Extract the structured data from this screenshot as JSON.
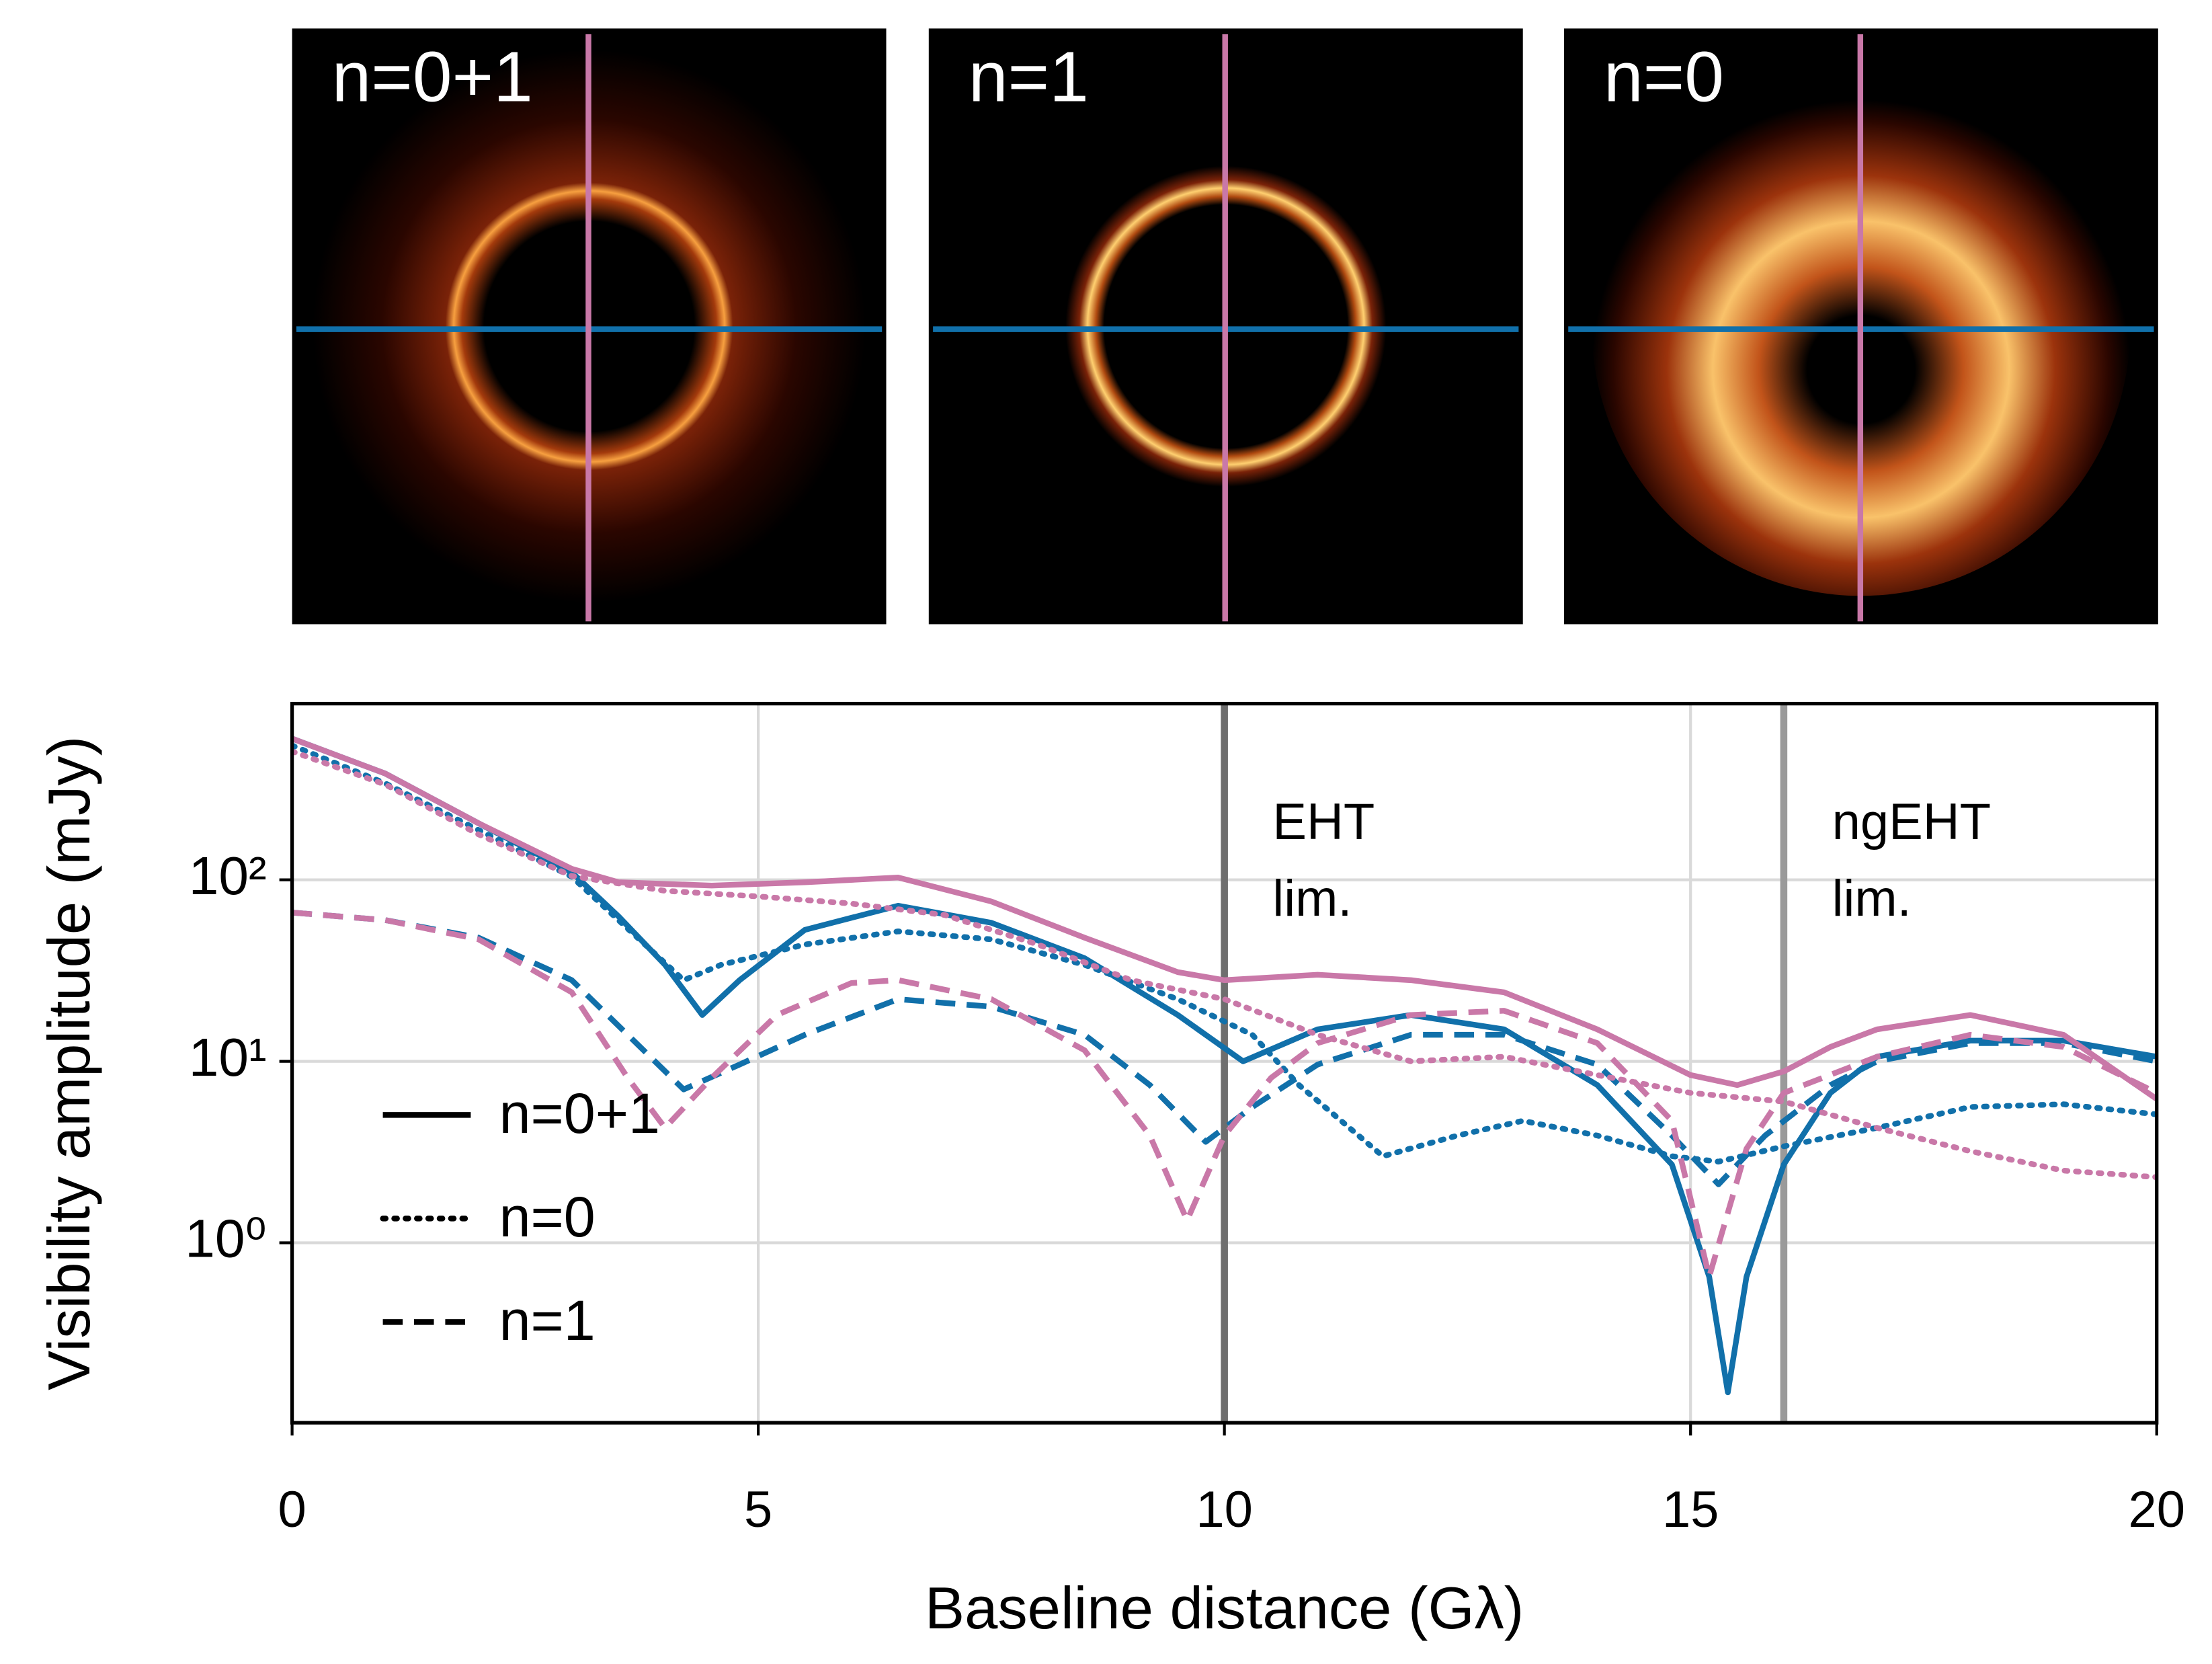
{
  "chart_data": {
    "type": "line",
    "panels": [
      {
        "label": "n=0+1"
      },
      {
        "label": "n=1"
      },
      {
        "label": "n=0"
      }
    ],
    "x_label": "Baseline distance (Gλ)",
    "y_label": "Visibility amplitude (mJy)",
    "xlim": [
      0,
      20
    ],
    "xticks": [
      0,
      5,
      10,
      15,
      20
    ],
    "ylim": [
      0.102,
      935
    ],
    "yscale": "log",
    "yticks": [
      {
        "value": 1,
        "label": "10⁰"
      },
      {
        "value": 10,
        "label": "10¹"
      },
      {
        "value": 100,
        "label": "10²"
      }
    ],
    "grid": true,
    "legend": [
      {
        "label": "n=0+1",
        "line_style": "solid"
      },
      {
        "label": "n=0",
        "line_style": "dotted"
      },
      {
        "label": "n=1",
        "line_style": "dashed"
      }
    ],
    "vlines": [
      {
        "x": 10,
        "color": "#6e6e6e",
        "text": [
          "EHT",
          "lim."
        ]
      },
      {
        "x": 16,
        "color": "#9a9a9a",
        "text": [
          "ngEHT",
          "lim."
        ]
      }
    ],
    "series": [
      {
        "color": "#1170aa",
        "line_style": "solid",
        "x": [
          0,
          1,
          2,
          3,
          3.5,
          4,
          4.4,
          4.8,
          5.5,
          6.5,
          7.5,
          8.5,
          9.5,
          10.2,
          11,
          12,
          13,
          14,
          14.8,
          15.2,
          15.4,
          15.6,
          16,
          16.5,
          17,
          18,
          19,
          20
        ],
        "values": [
          600,
          385,
          205,
          110,
          63,
          34,
          18,
          28,
          53,
          72,
          58,
          37,
          18,
          10,
          15,
          18,
          15,
          7.4,
          2.7,
          0.65,
          0.15,
          0.65,
          2.7,
          6.7,
          10.6,
          13,
          13,
          10.6
        ]
      },
      {
        "color": "#1170aa",
        "line_style": "dotted",
        "x": [
          0,
          1,
          2,
          3,
          3.5,
          4.2,
          4.6,
          5.5,
          6.5,
          7.5,
          8.5,
          9.5,
          10.3,
          10.8,
          11.7,
          12.5,
          13.2,
          14,
          14.8,
          15.3,
          16,
          17,
          18,
          19,
          20
        ],
        "values": [
          550,
          340,
          188,
          104,
          60,
          28,
          34,
          44,
          52,
          47,
          34,
          22,
          14,
          7.4,
          3,
          3.9,
          4.7,
          3.9,
          3,
          2.8,
          3.4,
          4.3,
          5.6,
          5.8,
          5.1
        ]
      },
      {
        "color": "#1170aa",
        "line_style": "dashed",
        "x": [
          0,
          1,
          2,
          3,
          3.6,
          4.2,
          4.8,
          5.5,
          6.5,
          7.5,
          8.5,
          9.2,
          9.8,
          10.3,
          11,
          12,
          13,
          14,
          14.8,
          15.3,
          15.8,
          16.5,
          17,
          18,
          19,
          20
        ],
        "values": [
          66,
          60,
          48,
          28,
          14,
          7,
          9.6,
          14,
          22,
          20,
          14,
          7.4,
          3.6,
          5.6,
          9.6,
          14,
          14,
          9.6,
          3.9,
          2.1,
          3.9,
          7.4,
          10,
          12.6,
          12.6,
          10
        ]
      },
      {
        "color": "#c978a8",
        "line_style": "solid",
        "x": [
          0,
          1,
          2,
          3,
          3.5,
          4.5,
          5.5,
          6.5,
          7.5,
          8.5,
          9.5,
          10,
          11,
          12,
          13,
          14,
          15,
          15.5,
          16,
          16.5,
          17,
          18,
          19,
          20
        ],
        "values": [
          600,
          385,
          205,
          115,
          97,
          93,
          97,
          103,
          76,
          48,
          31,
          28,
          30,
          28,
          24,
          15,
          8.4,
          7.4,
          8.8,
          12,
          15,
          18,
          14,
          6.2
        ]
      },
      {
        "color": "#c978a8",
        "line_style": "dotted",
        "x": [
          0,
          1,
          2,
          3,
          4,
          5,
          6,
          7,
          8,
          9,
          10,
          11,
          12,
          13,
          14,
          15,
          16,
          17,
          18,
          19,
          20
        ],
        "values": [
          510,
          335,
          178,
          105,
          87,
          81,
          74,
          64,
          44,
          28,
          22,
          14,
          10,
          10.6,
          8.4,
          6.7,
          6,
          4.3,
          3.2,
          2.5,
          2.3
        ]
      },
      {
        "color": "#c978a8",
        "line_style": "dashed",
        "x": [
          0,
          1,
          2,
          3,
          3.6,
          4,
          4.5,
          5.2,
          6,
          6.5,
          7.5,
          8.5,
          9.2,
          9.6,
          10,
          10.5,
          11,
          12,
          13,
          14,
          14.8,
          15.2,
          15.6,
          16,
          17,
          18,
          19,
          20
        ],
        "values": [
          66,
          60,
          47,
          24,
          8.1,
          4.3,
          8.1,
          18,
          27,
          28,
          22,
          11.5,
          3.9,
          1.33,
          3.9,
          8.1,
          12.6,
          18,
          19,
          12.6,
          4.7,
          0.65,
          3.3,
          6.7,
          10.6,
          14,
          12,
          6.7
        ]
      }
    ]
  }
}
